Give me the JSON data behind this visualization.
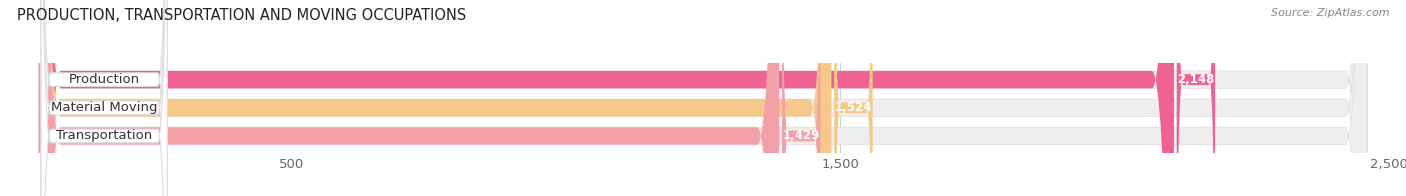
{
  "title": "PRODUCTION, TRANSPORTATION AND MOVING OCCUPATIONS",
  "source": "Source: ZipAtlas.com",
  "categories": [
    "Production",
    "Material Moving",
    "Transportation"
  ],
  "values": [
    2148,
    1524,
    1429
  ],
  "bar_colors": [
    "#F06292",
    "#F5C98A",
    "#F4A0A8"
  ],
  "bar_bg_colors": [
    "#EEEEEE",
    "#EEEEEE",
    "#EEEEEE"
  ],
  "value_label_bg_colors": [
    "#F06292",
    "#F5C98A",
    "#F4A0A8"
  ],
  "value_labels": [
    "2,148",
    "1,524",
    "1,429"
  ],
  "xlim": [
    0,
    2500
  ],
  "xticks": [
    500,
    1500,
    2500
  ],
  "xtick_labels": [
    "500",
    "1,500",
    "2,500"
  ],
  "title_fontsize": 10.5,
  "label_fontsize": 9.5,
  "value_fontsize": 8.5,
  "source_fontsize": 8,
  "background_color": "#ffffff"
}
